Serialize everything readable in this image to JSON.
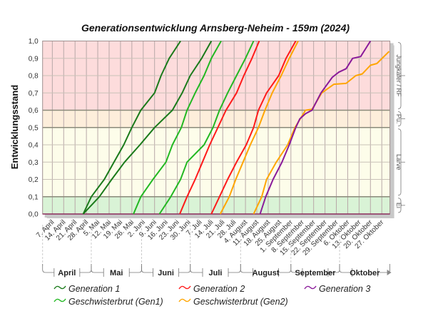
{
  "chart_data": {
    "type": "line",
    "title": "Generationsentwicklung Arnsberg-Neheim - 159m (2024)",
    "ylabel": "Entwicklungsstand",
    "xlabel": "",
    "x_unit": "days since 1. April 2024",
    "xlim": [
      0,
      214
    ],
    "ylim": [
      0,
      1
    ],
    "grid": true,
    "yticks": [
      "0,0",
      "0,1",
      "0,2",
      "0,3",
      "0,4",
      "0,5",
      "0,6",
      "0,7",
      "0,8",
      "0,9",
      "1,0"
    ],
    "xtick_start_day": 6,
    "xtick_step_days": 7,
    "xticks": [
      "7. April",
      "14. April",
      "21. April",
      "28. April",
      "5. Mai",
      "12. Mai",
      "19. Mai",
      "26. Mai",
      "2. Juni",
      "9. Juni",
      "16. Juni",
      "23. Juni",
      "30. Juni",
      "7. Juli",
      "14. Juli",
      "21. Juli",
      "28. Juli",
      "4. August",
      "11. August",
      "18. August",
      "25. August",
      "1. September",
      "8. September",
      "15. September",
      "22. September",
      "29. September",
      "6. Oktober",
      "13. Oktober",
      "20. Oktober",
      "27. Oktober"
    ],
    "months": [
      {
        "label": "April",
        "start": 0,
        "end": 30
      },
      {
        "label": "Mai",
        "start": 30,
        "end": 61
      },
      {
        "label": "Juni",
        "start": 61,
        "end": 91
      },
      {
        "label": "Juli",
        "start": 91,
        "end": 122
      },
      {
        "label": "August",
        "start": 122,
        "end": 153
      },
      {
        "label": "September",
        "start": 153,
        "end": 183
      },
      {
        "label": "Oktober",
        "start": 183,
        "end": 214
      }
    ],
    "bands": [
      {
        "label": "Ei",
        "from": 0,
        "to": 0.1,
        "color": "#d9f3d6"
      },
      {
        "label": "Larve",
        "from": 0.1,
        "to": 0.5,
        "color": "#fdfdea"
      },
      {
        "label": "Pu.",
        "from": 0.5,
        "to": 0.6,
        "color": "#fdeedb"
      },
      {
        "label": "Jungkäfer / RF",
        "from": 0.6,
        "to": 1.0,
        "color": "#fddcdc"
      }
    ],
    "legend": [
      {
        "name": "Generation 1",
        "color": "#1a7a1a"
      },
      {
        "name": "Generation 2",
        "color": "#ff1a1a"
      },
      {
        "name": "Generation 3",
        "color": "#8a1a9a"
      },
      {
        "name": "Geschwisterbrut (Gen1)",
        "color": "#22b822"
      },
      {
        "name": "Geschwisterbrut (Gen2)",
        "color": "#ffa500"
      }
    ],
    "series": [
      {
        "name": "Generation 1",
        "color": "#1a7a1a",
        "x": [
          25,
          30,
          38,
          44,
          50,
          55,
          60.5,
          69,
          73,
          78,
          85
        ],
        "y": [
          0,
          0.1,
          0.2,
          0.3,
          0.4,
          0.5,
          0.6,
          0.7,
          0.8,
          0.9,
          1.0
        ]
      },
      {
        "name": "Generation 1",
        "color": "#1a7a1a",
        "x": [
          25,
          35,
          42.6,
          50.5,
          60,
          69,
          80,
          86,
          91,
          98,
          104
        ],
        "y": [
          0,
          0.1,
          0.2,
          0.3,
          0.4,
          0.5,
          0.6,
          0.7,
          0.8,
          0.9,
          1.0
        ]
      },
      {
        "name": "Geschwisterbrut (Gen1)",
        "color": "#22b822",
        "x": [
          56,
          60.5,
          68,
          76,
          80,
          85.5,
          89,
          94,
          99.5,
          104,
          110
        ],
        "y": [
          0,
          0.1,
          0.2,
          0.3,
          0.4,
          0.5,
          0.6,
          0.7,
          0.8,
          0.9,
          1.0
        ]
      },
      {
        "name": "Geschwisterbrut (Gen1)",
        "color": "#22b822",
        "x": [
          72,
          79,
          85,
          89,
          99.5,
          105,
          109,
          114,
          119.5,
          125,
          130
        ],
        "y": [
          0,
          0.1,
          0.2,
          0.3,
          0.4,
          0.5,
          0.6,
          0.7,
          0.8,
          0.9,
          1.0
        ]
      },
      {
        "name": "Generation 2",
        "color": "#ff1a1a",
        "x": [
          84.5,
          89,
          94,
          98.5,
          103,
          108,
          113,
          119.5,
          124,
          129,
          133.5
        ],
        "y": [
          0,
          0.1,
          0.2,
          0.3,
          0.4,
          0.5,
          0.6,
          0.7,
          0.8,
          0.9,
          1.0
        ]
      },
      {
        "name": "Generation 2",
        "color": "#ff1a1a",
        "x": [
          104,
          109,
          114,
          119.5,
          125.5,
          130,
          133,
          138,
          145.5,
          150,
          156
        ],
        "y": [
          0,
          0.1,
          0.2,
          0.3,
          0.4,
          0.5,
          0.6,
          0.7,
          0.8,
          0.9,
          1.0
        ]
      },
      {
        "name": "Geschwisterbrut (Gen2)",
        "color": "#ffa500",
        "x": [
          109.5,
          115,
          119,
          123.5,
          128,
          133,
          137,
          141.5,
          147,
          152,
          157.5
        ],
        "y": [
          0,
          0.1,
          0.2,
          0.3,
          0.4,
          0.5,
          0.6,
          0.7,
          0.8,
          0.9,
          1.0
        ]
      },
      {
        "name": "Geschwisterbrut (Gen2)",
        "color": "#ffa500",
        "x": [
          130,
          135,
          138,
          144,
          151,
          155.5,
          162,
          166,
          172,
          179.5,
          187,
          193,
          197,
          202,
          206,
          213.5
        ],
        "y": [
          0,
          0.1,
          0.2,
          0.3,
          0.4,
          0.5,
          0.6,
          0.605,
          0.7,
          0.75,
          0.755,
          0.8,
          0.81,
          0.86,
          0.87,
          0.94
        ]
      },
      {
        "name": "Generation 3",
        "color": "#8a1a9a",
        "x": [
          134,
          137.5,
          142,
          147.5,
          152,
          156,
          158.5,
          162,
          166,
          171.5,
          178.5,
          182.5,
          187,
          191,
          196,
          202
        ],
        "y": [
          0,
          0.1,
          0.2,
          0.3,
          0.4,
          0.5,
          0.55,
          0.58,
          0.6,
          0.7,
          0.79,
          0.82,
          0.84,
          0.9,
          0.91,
          1.0
        ]
      }
    ]
  }
}
